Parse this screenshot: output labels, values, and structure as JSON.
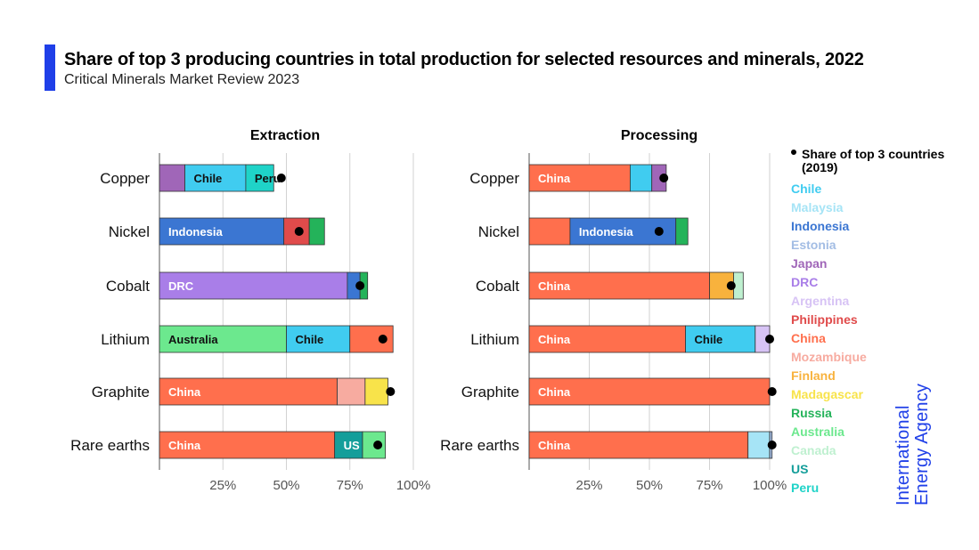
{
  "header": {
    "title": "Share of top 3 producing countries in total production for selected resources and minerals, 2022",
    "subtitle": "Critical Minerals Market Review 2023"
  },
  "colors": {
    "accent": "#1f3fe8",
    "Chile": "#40ccf0",
    "Malaysia": "#a6e4f6",
    "Indonesia": "#3b76d2",
    "Estonia": "#a3bde4",
    "Japan": "#a066b8",
    "DRC": "#a97ee8",
    "Argentina": "#d7c3f5",
    "Philippines": "#e04b4b",
    "China": "#ff6f4d",
    "Mozambique": "#f7aba0",
    "Finland": "#f8b23d",
    "Madagascar": "#f8e34a",
    "Russia": "#24b35a",
    "Australia": "#6ce88e",
    "Canada": "#bff0d0",
    "US": "#149e9a",
    "Peru": "#1fd3c8"
  },
  "legend": {
    "marker_label": "Share of top 3 countries (2019)",
    "items": [
      "Chile",
      "Malaysia",
      "Indonesia",
      "Estonia",
      "Japan",
      "DRC",
      "Argentina",
      "Philippines",
      "China",
      "Mozambique",
      "Finland",
      "Madagascar",
      "Russia",
      "Australia",
      "Canada",
      "US",
      "Peru"
    ]
  },
  "logo": {
    "line1": "International",
    "line2": "Energy Agency"
  },
  "chart_data": [
    {
      "type": "bar",
      "orientation": "horizontal",
      "stacked": true,
      "title": "Extraction",
      "xlim": [
        0,
        100
      ],
      "x_ticks": [
        "25%",
        "50%",
        "75%",
        "100%"
      ],
      "grid": true,
      "categories": [
        "Copper",
        "Nickel",
        "Cobalt",
        "Lithium",
        "Graphite",
        "Rare earths"
      ],
      "rows": [
        {
          "category": "Copper",
          "marker_2019": 48,
          "segments": [
            {
              "country": "Japan",
              "value": 10,
              "label": ""
            },
            {
              "country": "Chile",
              "value": 24,
              "label": "Chile"
            },
            {
              "country": "Peru",
              "value": 11,
              "label": "Peru"
            }
          ]
        },
        {
          "category": "Nickel",
          "marker_2019": 55,
          "segments": [
            {
              "country": "Indonesia",
              "value": 49,
              "label": "Indonesia"
            },
            {
              "country": "Philippines",
              "value": 10,
              "label": ""
            },
            {
              "country": "Russia",
              "value": 6,
              "label": ""
            }
          ]
        },
        {
          "category": "Cobalt",
          "marker_2019": 79,
          "segments": [
            {
              "country": "DRC",
              "value": 74,
              "label": "DRC"
            },
            {
              "country": "Indonesia",
              "value": 5,
              "label": ""
            },
            {
              "country": "Russia",
              "value": 3,
              "label": ""
            }
          ]
        },
        {
          "category": "Lithium",
          "marker_2019": 88,
          "segments": [
            {
              "country": "Australia",
              "value": 50,
              "label": "Australia"
            },
            {
              "country": "Chile",
              "value": 25,
              "label": "Chile"
            },
            {
              "country": "China",
              "value": 17,
              "label": ""
            }
          ]
        },
        {
          "category": "Graphite",
          "marker_2019": 91,
          "segments": [
            {
              "country": "China",
              "value": 70,
              "label": "China"
            },
            {
              "country": "Mozambique",
              "value": 11,
              "label": ""
            },
            {
              "country": "Madagascar",
              "value": 9,
              "label": ""
            }
          ]
        },
        {
          "category": "Rare earths",
          "marker_2019": 86,
          "segments": [
            {
              "country": "China",
              "value": 69,
              "label": "China"
            },
            {
              "country": "US",
              "value": 11,
              "label": "US"
            },
            {
              "country": "Australia",
              "value": 9,
              "label": ""
            }
          ]
        }
      ]
    },
    {
      "type": "bar",
      "orientation": "horizontal",
      "stacked": true,
      "title": "Processing",
      "xlim": [
        0,
        100
      ],
      "x_ticks": [
        "25%",
        "50%",
        "75%",
        "100%"
      ],
      "grid": true,
      "categories": [
        "Copper",
        "Nickel",
        "Cobalt",
        "Lithium",
        "Graphite",
        "Rare earths"
      ],
      "rows": [
        {
          "category": "Copper",
          "marker_2019": 56,
          "segments": [
            {
              "country": "China",
              "value": 42,
              "label": "China"
            },
            {
              "country": "Chile",
              "value": 9,
              "label": ""
            },
            {
              "country": "Japan",
              "value": 6,
              "label": ""
            }
          ]
        },
        {
          "category": "Nickel",
          "marker_2019": 54,
          "segments": [
            {
              "country": "China",
              "value": 17,
              "label": ""
            },
            {
              "country": "Indonesia",
              "value": 44,
              "label": "Indonesia"
            },
            {
              "country": "Russia",
              "value": 5,
              "label": ""
            }
          ]
        },
        {
          "category": "Cobalt",
          "marker_2019": 84,
          "segments": [
            {
              "country": "China",
              "value": 75,
              "label": "China"
            },
            {
              "country": "Finland",
              "value": 10,
              "label": ""
            },
            {
              "country": "Canada",
              "value": 4,
              "label": ""
            }
          ]
        },
        {
          "category": "Lithium",
          "marker_2019": 100,
          "segments": [
            {
              "country": "China",
              "value": 65,
              "label": "China"
            },
            {
              "country": "Chile",
              "value": 29,
              "label": "Chile"
            },
            {
              "country": "Argentina",
              "value": 6,
              "label": ""
            }
          ]
        },
        {
          "category": "Graphite",
          "marker_2019": 101,
          "segments": [
            {
              "country": "China",
              "value": 100,
              "label": "China"
            }
          ]
        },
        {
          "category": "Rare earths",
          "marker_2019": 101,
          "segments": [
            {
              "country": "China",
              "value": 91,
              "label": "China"
            },
            {
              "country": "Malaysia",
              "value": 9,
              "label": ""
            },
            {
              "country": "Estonia",
              "value": 1,
              "label": ""
            }
          ]
        }
      ]
    }
  ]
}
